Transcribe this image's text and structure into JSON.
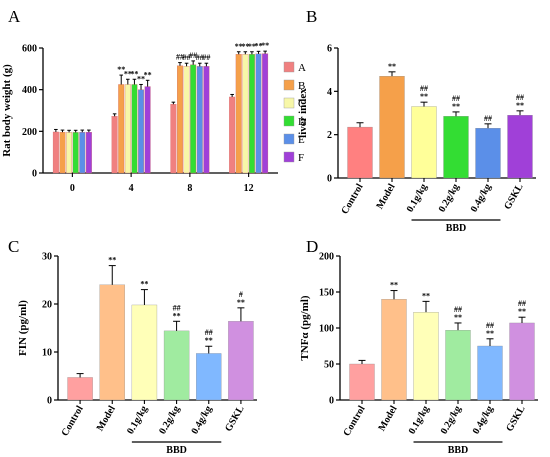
{
  "chart_data": [
    {
      "panel": "A",
      "type": "bar",
      "ylabel": "Rat body weight (g)",
      "ylim": [
        0,
        600
      ],
      "yticks": [
        0,
        200,
        400,
        600
      ],
      "categories": [
        "0",
        "4",
        "8",
        "12"
      ],
      "legend_position": "right",
      "series": [
        {
          "name": "A",
          "color": "#F08080",
          "values": [
            197,
            272,
            330,
            365
          ],
          "errors": [
            12,
            12,
            10,
            12
          ],
          "sig": [
            "",
            "",
            "",
            ""
          ]
        },
        {
          "name": "B",
          "color": "#F5A04A",
          "values": [
            196,
            425,
            515,
            570
          ],
          "errors": [
            10,
            45,
            15,
            12
          ],
          "sig": [
            "",
            "**",
            "##",
            "**"
          ]
        },
        {
          "name": "C",
          "color": "#F7F7A8",
          "values": [
            195,
            425,
            512,
            570
          ],
          "errors": [
            10,
            25,
            15,
            12
          ],
          "sig": [
            "",
            "**",
            "##",
            "**"
          ]
        },
        {
          "name": "D",
          "color": "#33DD33",
          "values": [
            195,
            425,
            520,
            570
          ],
          "errors": [
            10,
            25,
            18,
            12
          ],
          "sig": [
            "",
            "**",
            "##",
            "**"
          ]
        },
        {
          "name": "E",
          "color": "#5B8FE8",
          "values": [
            196,
            400,
            512,
            572
          ],
          "errors": [
            10,
            25,
            15,
            12
          ],
          "sig": [
            "",
            "**",
            "##",
            "**"
          ]
        },
        {
          "name": "F",
          "color": "#A040D8",
          "values": [
            196,
            415,
            512,
            573
          ],
          "errors": [
            10,
            30,
            15,
            12
          ],
          "sig": [
            "",
            "**",
            "##",
            "**"
          ]
        }
      ]
    },
    {
      "panel": "B",
      "type": "bar",
      "ylabel": "liver index",
      "ylim": [
        0,
        6
      ],
      "yticks": [
        0,
        2,
        4,
        6
      ],
      "categories": [
        "Control",
        "Model",
        "0.1g/kg",
        "0.2g/kg",
        "0.4g/kg",
        "GSKL"
      ],
      "colors": [
        "#FF8080",
        "#F5A04A",
        "#FFFF99",
        "#33DD33",
        "#5B8FE8",
        "#A040D8"
      ],
      "values": [
        2.35,
        4.7,
        3.3,
        2.85,
        2.3,
        2.9
      ],
      "errors": [
        0.2,
        0.2,
        0.2,
        0.2,
        0.2,
        0.2
      ],
      "sig": [
        [],
        [
          "**"
        ],
        [
          "##",
          "**"
        ],
        [
          "##",
          "**"
        ],
        [
          "##"
        ],
        [
          "##",
          "**"
        ]
      ],
      "group_label": "BBD"
    },
    {
      "panel": "C",
      "type": "bar",
      "ylabel": "FIN (pg/ml)",
      "ylim": [
        0,
        30
      ],
      "yticks": [
        0,
        10,
        20,
        30
      ],
      "categories": [
        "Control",
        "Model",
        "0.1g/kg",
        "0.2g/kg",
        "0.4g/kg",
        "GSKL"
      ],
      "colors": [
        "#FFA0A0",
        "#FFC08A",
        "#FFFFB8",
        "#A0EBA0",
        "#80B8FF",
        "#D090E0"
      ],
      "values": [
        4.7,
        24,
        19.8,
        14.4,
        9.7,
        16.4
      ],
      "errors": [
        0.8,
        4.0,
        3.2,
        2.0,
        1.5,
        2.8
      ],
      "sig": [
        [],
        [
          "**"
        ],
        [
          "**"
        ],
        [
          "##",
          "**"
        ],
        [
          "##",
          "**"
        ],
        [
          "#",
          "**"
        ]
      ],
      "group_label": "BBD"
    },
    {
      "panel": "D",
      "type": "bar",
      "ylabel": "TNFα (pg/ml)",
      "ylim": [
        0,
        200
      ],
      "yticks": [
        0,
        50,
        100,
        150,
        200
      ],
      "categories": [
        "Control",
        "Model",
        "0.1g/kg",
        "0.2g/kg",
        "0.4g/kg",
        "GSKL"
      ],
      "colors": [
        "#FFA0A0",
        "#FFC08A",
        "#FFFFB8",
        "#A0EBA0",
        "#80B8FF",
        "#D090E0"
      ],
      "values": [
        50,
        140,
        122,
        97,
        75,
        107
      ],
      "errors": [
        5,
        12,
        15,
        10,
        10,
        8
      ],
      "sig": [
        [],
        [
          "**"
        ],
        [
          "**"
        ],
        [
          "##",
          "**"
        ],
        [
          "##",
          "**"
        ],
        [
          "##",
          "**"
        ]
      ],
      "group_label": "BBD"
    }
  ]
}
